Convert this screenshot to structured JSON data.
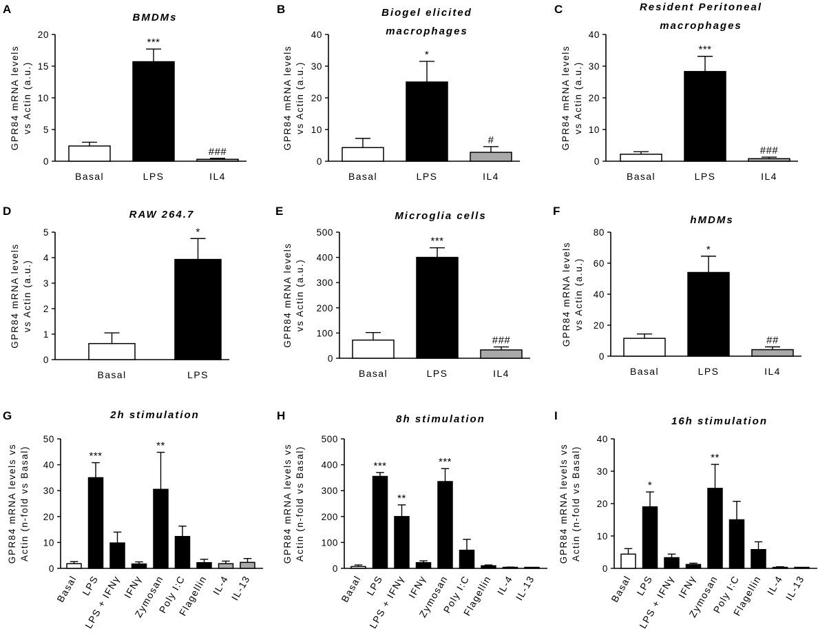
{
  "colors": {
    "black": "#000000",
    "white": "#ffffff",
    "gray": "#a9a9a9"
  },
  "chart_data": [
    {
      "panel": "A",
      "type": "bar",
      "title": [
        "BMDMs"
      ],
      "ylabel": [
        "GPR84 mRNA levels",
        "vs Actin (a.u.)"
      ],
      "ylim": [
        0,
        20
      ],
      "yticks": [
        0,
        5,
        10,
        15,
        20
      ],
      "categories": [
        "Basal",
        "LPS",
        "IL4"
      ],
      "values": [
        2.4,
        15.7,
        0.3
      ],
      "errors": [
        0.6,
        2.0,
        0.15
      ],
      "fills": [
        "white",
        "black",
        "gray"
      ],
      "annotations": [
        "",
        "***",
        "###"
      ]
    },
    {
      "panel": "B",
      "type": "bar",
      "title": [
        "Biogel elicited",
        "macrophages"
      ],
      "ylabel": [
        "GPR84 mRNA levels",
        "vs Actin (a.u.)"
      ],
      "ylim": [
        0,
        40
      ],
      "yticks": [
        0,
        10,
        20,
        30,
        40
      ],
      "categories": [
        "Basal",
        "LPS",
        "IL4"
      ],
      "values": [
        4.3,
        25.0,
        2.8
      ],
      "errors": [
        2.9,
        6.5,
        1.8
      ],
      "fills": [
        "white",
        "black",
        "gray"
      ],
      "annotations": [
        "",
        "*",
        "#"
      ]
    },
    {
      "panel": "C",
      "type": "bar",
      "title": [
        "Resident Peritoneal",
        "macrophages"
      ],
      "ylabel": [
        "GPR84 mRNA levels",
        "vs Actin (a.u.)"
      ],
      "ylim": [
        0,
        40
      ],
      "yticks": [
        0,
        10,
        20,
        30,
        40
      ],
      "categories": [
        "Basal",
        "LPS",
        "IL4"
      ],
      "values": [
        2.2,
        28.3,
        0.8
      ],
      "errors": [
        0.8,
        4.8,
        0.5
      ],
      "fills": [
        "white",
        "black",
        "gray"
      ],
      "annotations": [
        "",
        "***",
        "###"
      ]
    },
    {
      "panel": "D",
      "type": "bar",
      "title": [
        "RAW 264.7"
      ],
      "ylabel": [
        "GPR84 mRNA levels",
        "vs Actin (a.u.)"
      ],
      "ylim": [
        0,
        5
      ],
      "yticks": [
        0,
        1,
        2,
        3,
        4,
        5
      ],
      "categories": [
        "Basal",
        "LPS"
      ],
      "values": [
        0.63,
        3.93
      ],
      "errors": [
        0.42,
        0.82
      ],
      "fills": [
        "white",
        "black"
      ],
      "annotations": [
        "",
        "*"
      ]
    },
    {
      "panel": "E",
      "type": "bar",
      "title": [
        "Microglia cells"
      ],
      "ylabel": [
        "GPR84 mRNA levels",
        "vs Actin (a.u.)"
      ],
      "ylim": [
        0,
        500
      ],
      "yticks": [
        0,
        100,
        200,
        300,
        400,
        500
      ],
      "categories": [
        "Basal",
        "LPS",
        "IL4"
      ],
      "values": [
        72,
        400,
        33
      ],
      "errors": [
        30,
        38,
        12
      ],
      "fills": [
        "white",
        "black",
        "gray"
      ],
      "annotations": [
        "",
        "***",
        "###"
      ]
    },
    {
      "panel": "F",
      "type": "bar",
      "title": [
        "hMDMs"
      ],
      "ylabel": [
        "GPR84 mRNA levels",
        "vs Actin (a.u.)"
      ],
      "ylim": [
        0,
        80
      ],
      "yticks": [
        0,
        20,
        40,
        60,
        80
      ],
      "categories": [
        "Basal",
        "LPS",
        "IL4"
      ],
      "values": [
        11.5,
        54,
        4.2
      ],
      "errors": [
        2.8,
        10.5,
        1.8
      ],
      "fills": [
        "white",
        "black",
        "gray"
      ],
      "annotations": [
        "",
        "*",
        "##"
      ]
    },
    {
      "panel": "G",
      "type": "bar",
      "title": [
        "2h stimulation"
      ],
      "ylabel": [
        "GPR84 mRNA levels vs",
        "Actin (n-fold vs Basal)"
      ],
      "ylim": [
        0,
        50
      ],
      "yticks": [
        0,
        10,
        20,
        30,
        40,
        50
      ],
      "categories": [
        "Basal",
        "LPS",
        "LPS + IFNγ",
        "IFNγ",
        "Zymosan",
        "Poly I:C",
        "Flagellin",
        "IL-4",
        "IL-13"
      ],
      "values": [
        1.8,
        35,
        9.8,
        1.7,
        30.5,
        12.3,
        2.2,
        1.8,
        2.3
      ],
      "errors": [
        0.8,
        5.8,
        4.2,
        0.8,
        14.3,
        4.0,
        1.3,
        1.0,
        1.5
      ],
      "fills": [
        "white",
        "black",
        "black",
        "black",
        "black",
        "black",
        "black",
        "gray",
        "gray"
      ],
      "annotations": [
        "",
        "***",
        "",
        "",
        "**",
        "",
        "",
        "",
        ""
      ]
    },
    {
      "panel": "H",
      "type": "bar",
      "title": [
        "8h stimulation"
      ],
      "ylabel": [
        "GPR84 mRNA levels vs",
        "Actin (n-fold vs Basal)"
      ],
      "ylim": [
        0,
        500
      ],
      "yticks": [
        0,
        100,
        200,
        300,
        400,
        500
      ],
      "categories": [
        "Basal",
        "LPS",
        "LPS + IFNγ",
        "IFNγ",
        "Zymosan",
        "Poly I:C",
        "Flagellin",
        "IL-4",
        "IL-13"
      ],
      "values": [
        7,
        355,
        200,
        22,
        335,
        70,
        10,
        3,
        2
      ],
      "errors": [
        6,
        15,
        45,
        7,
        50,
        42,
        3,
        2,
        1
      ],
      "fills": [
        "white",
        "black",
        "black",
        "black",
        "black",
        "black",
        "black",
        "gray",
        "gray"
      ],
      "annotations": [
        "",
        "***",
        "**",
        "",
        "***",
        "",
        "",
        "",
        ""
      ]
    },
    {
      "panel": "I",
      "type": "bar",
      "title": [
        "16h stimulation"
      ],
      "ylabel": [
        "GPR84 mRNA levels vs",
        "Actin (n-fold vs Basal)"
      ],
      "ylim": [
        0,
        40
      ],
      "yticks": [
        0,
        10,
        20,
        30,
        40
      ],
      "categories": [
        "Basal",
        "LPS",
        "LPS + IFNγ",
        "IFNγ",
        "Zymosan",
        "Poly I:C",
        "Flagellin",
        "IL-4",
        "IL-13"
      ],
      "values": [
        4.4,
        19,
        3.3,
        1.2,
        24.7,
        15,
        5.8,
        0.3,
        0.1
      ],
      "errors": [
        1.7,
        4.6,
        1.1,
        0.4,
        7.4,
        5.7,
        2.4,
        0.2,
        0.1
      ],
      "fills": [
        "white",
        "black",
        "black",
        "black",
        "black",
        "black",
        "black",
        "gray",
        "gray"
      ],
      "annotations": [
        "",
        "*",
        "",
        "",
        "**",
        "",
        "",
        "",
        ""
      ]
    }
  ]
}
